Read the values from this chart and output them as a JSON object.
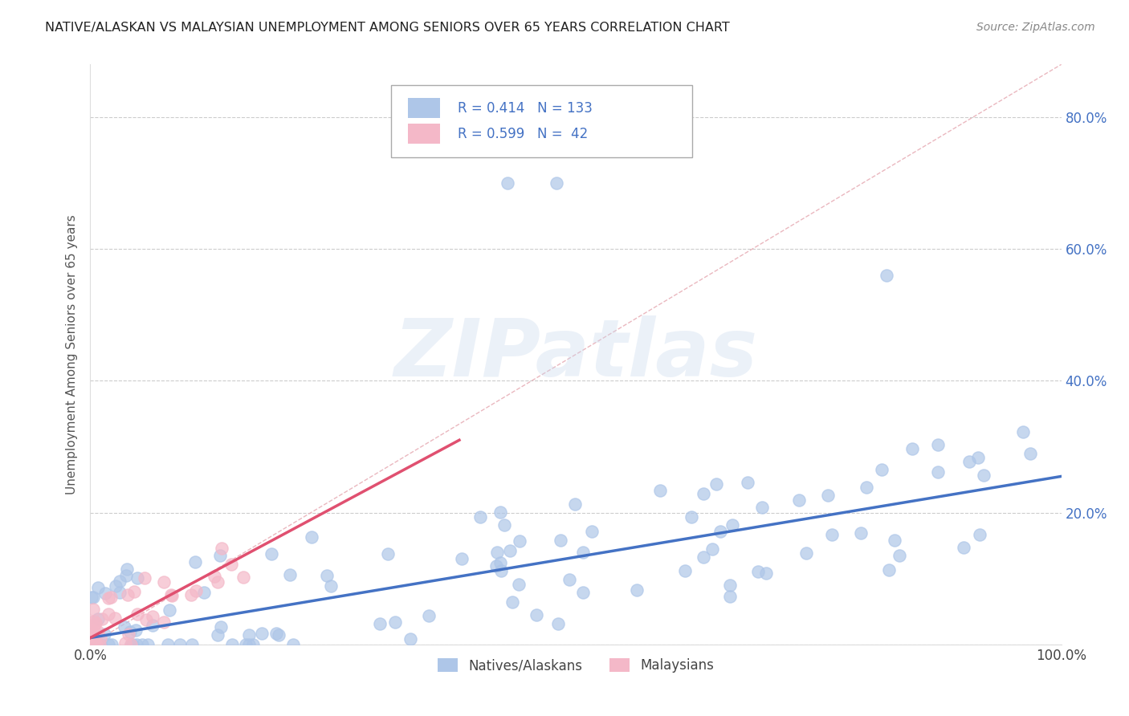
{
  "title": "NATIVE/ALASKAN VS MALAYSIAN UNEMPLOYMENT AMONG SENIORS OVER 65 YEARS CORRELATION CHART",
  "source": "Source: ZipAtlas.com",
  "ylabel": "Unemployment Among Seniors over 65 years",
  "xlim": [
    0,
    1.0
  ],
  "ylim": [
    0,
    0.88
  ],
  "xtick_positions": [
    0.0,
    0.25,
    0.5,
    0.75,
    1.0
  ],
  "xticklabels": [
    "0.0%",
    "",
    "",
    "",
    "100.0%"
  ],
  "ytick_positions": [
    0.0,
    0.2,
    0.4,
    0.6,
    0.8
  ],
  "yticklabels_right": [
    "",
    "20.0%",
    "40.0%",
    "60.0%",
    "80.0%"
  ],
  "legend_label_native": "Natives/Alaskans",
  "legend_label_malay": "Malaysians",
  "native_color": "#aec6e8",
  "native_line_color": "#4472c4",
  "malay_color": "#f4b8c8",
  "malay_line_color": "#e05070",
  "diag_color": "#e8b0b8",
  "watermark": "ZIPatlas",
  "native_R": 0.414,
  "native_N": 133,
  "malay_R": 0.599,
  "malay_N": 42,
  "background_color": "#ffffff",
  "native_scatter_seed": 42,
  "malay_scatter_seed": 7,
  "native_line_x": [
    0.0,
    1.0
  ],
  "native_line_y": [
    0.01,
    0.255
  ],
  "malay_line_x": [
    0.0,
    0.38
  ],
  "malay_line_y": [
    0.01,
    0.31
  ]
}
